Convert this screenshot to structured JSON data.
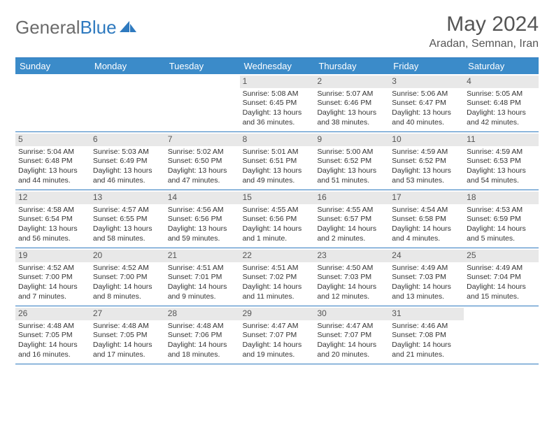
{
  "logo": {
    "text1": "General",
    "text2": "Blue"
  },
  "title": "May 2024",
  "location": "Aradan, Semnan, Iran",
  "colors": {
    "header_bg": "#3b8bc9",
    "border": "#2f7abf",
    "daynum_bg": "#e8e8e8",
    "page_bg": "#ffffff",
    "text": "#333333"
  },
  "dayNames": [
    "Sunday",
    "Monday",
    "Tuesday",
    "Wednesday",
    "Thursday",
    "Friday",
    "Saturday"
  ],
  "weeks": [
    [
      {
        "n": "",
        "l1": "",
        "l2": "",
        "l3": "",
        "l4": ""
      },
      {
        "n": "",
        "l1": "",
        "l2": "",
        "l3": "",
        "l4": ""
      },
      {
        "n": "",
        "l1": "",
        "l2": "",
        "l3": "",
        "l4": ""
      },
      {
        "n": "1",
        "l1": "Sunrise: 5:08 AM",
        "l2": "Sunset: 6:45 PM",
        "l3": "Daylight: 13 hours",
        "l4": "and 36 minutes."
      },
      {
        "n": "2",
        "l1": "Sunrise: 5:07 AM",
        "l2": "Sunset: 6:46 PM",
        "l3": "Daylight: 13 hours",
        "l4": "and 38 minutes."
      },
      {
        "n": "3",
        "l1": "Sunrise: 5:06 AM",
        "l2": "Sunset: 6:47 PM",
        "l3": "Daylight: 13 hours",
        "l4": "and 40 minutes."
      },
      {
        "n": "4",
        "l1": "Sunrise: 5:05 AM",
        "l2": "Sunset: 6:48 PM",
        "l3": "Daylight: 13 hours",
        "l4": "and 42 minutes."
      }
    ],
    [
      {
        "n": "5",
        "l1": "Sunrise: 5:04 AM",
        "l2": "Sunset: 6:48 PM",
        "l3": "Daylight: 13 hours",
        "l4": "and 44 minutes."
      },
      {
        "n": "6",
        "l1": "Sunrise: 5:03 AM",
        "l2": "Sunset: 6:49 PM",
        "l3": "Daylight: 13 hours",
        "l4": "and 46 minutes."
      },
      {
        "n": "7",
        "l1": "Sunrise: 5:02 AM",
        "l2": "Sunset: 6:50 PM",
        "l3": "Daylight: 13 hours",
        "l4": "and 47 minutes."
      },
      {
        "n": "8",
        "l1": "Sunrise: 5:01 AM",
        "l2": "Sunset: 6:51 PM",
        "l3": "Daylight: 13 hours",
        "l4": "and 49 minutes."
      },
      {
        "n": "9",
        "l1": "Sunrise: 5:00 AM",
        "l2": "Sunset: 6:52 PM",
        "l3": "Daylight: 13 hours",
        "l4": "and 51 minutes."
      },
      {
        "n": "10",
        "l1": "Sunrise: 4:59 AM",
        "l2": "Sunset: 6:52 PM",
        "l3": "Daylight: 13 hours",
        "l4": "and 53 minutes."
      },
      {
        "n": "11",
        "l1": "Sunrise: 4:59 AM",
        "l2": "Sunset: 6:53 PM",
        "l3": "Daylight: 13 hours",
        "l4": "and 54 minutes."
      }
    ],
    [
      {
        "n": "12",
        "l1": "Sunrise: 4:58 AM",
        "l2": "Sunset: 6:54 PM",
        "l3": "Daylight: 13 hours",
        "l4": "and 56 minutes."
      },
      {
        "n": "13",
        "l1": "Sunrise: 4:57 AM",
        "l2": "Sunset: 6:55 PM",
        "l3": "Daylight: 13 hours",
        "l4": "and 58 minutes."
      },
      {
        "n": "14",
        "l1": "Sunrise: 4:56 AM",
        "l2": "Sunset: 6:56 PM",
        "l3": "Daylight: 13 hours",
        "l4": "and 59 minutes."
      },
      {
        "n": "15",
        "l1": "Sunrise: 4:55 AM",
        "l2": "Sunset: 6:56 PM",
        "l3": "Daylight: 14 hours",
        "l4": "and 1 minute."
      },
      {
        "n": "16",
        "l1": "Sunrise: 4:55 AM",
        "l2": "Sunset: 6:57 PM",
        "l3": "Daylight: 14 hours",
        "l4": "and 2 minutes."
      },
      {
        "n": "17",
        "l1": "Sunrise: 4:54 AM",
        "l2": "Sunset: 6:58 PM",
        "l3": "Daylight: 14 hours",
        "l4": "and 4 minutes."
      },
      {
        "n": "18",
        "l1": "Sunrise: 4:53 AM",
        "l2": "Sunset: 6:59 PM",
        "l3": "Daylight: 14 hours",
        "l4": "and 5 minutes."
      }
    ],
    [
      {
        "n": "19",
        "l1": "Sunrise: 4:52 AM",
        "l2": "Sunset: 7:00 PM",
        "l3": "Daylight: 14 hours",
        "l4": "and 7 minutes."
      },
      {
        "n": "20",
        "l1": "Sunrise: 4:52 AM",
        "l2": "Sunset: 7:00 PM",
        "l3": "Daylight: 14 hours",
        "l4": "and 8 minutes."
      },
      {
        "n": "21",
        "l1": "Sunrise: 4:51 AM",
        "l2": "Sunset: 7:01 PM",
        "l3": "Daylight: 14 hours",
        "l4": "and 9 minutes."
      },
      {
        "n": "22",
        "l1": "Sunrise: 4:51 AM",
        "l2": "Sunset: 7:02 PM",
        "l3": "Daylight: 14 hours",
        "l4": "and 11 minutes."
      },
      {
        "n": "23",
        "l1": "Sunrise: 4:50 AM",
        "l2": "Sunset: 7:03 PM",
        "l3": "Daylight: 14 hours",
        "l4": "and 12 minutes."
      },
      {
        "n": "24",
        "l1": "Sunrise: 4:49 AM",
        "l2": "Sunset: 7:03 PM",
        "l3": "Daylight: 14 hours",
        "l4": "and 13 minutes."
      },
      {
        "n": "25",
        "l1": "Sunrise: 4:49 AM",
        "l2": "Sunset: 7:04 PM",
        "l3": "Daylight: 14 hours",
        "l4": "and 15 minutes."
      }
    ],
    [
      {
        "n": "26",
        "l1": "Sunrise: 4:48 AM",
        "l2": "Sunset: 7:05 PM",
        "l3": "Daylight: 14 hours",
        "l4": "and 16 minutes."
      },
      {
        "n": "27",
        "l1": "Sunrise: 4:48 AM",
        "l2": "Sunset: 7:05 PM",
        "l3": "Daylight: 14 hours",
        "l4": "and 17 minutes."
      },
      {
        "n": "28",
        "l1": "Sunrise: 4:48 AM",
        "l2": "Sunset: 7:06 PM",
        "l3": "Daylight: 14 hours",
        "l4": "and 18 minutes."
      },
      {
        "n": "29",
        "l1": "Sunrise: 4:47 AM",
        "l2": "Sunset: 7:07 PM",
        "l3": "Daylight: 14 hours",
        "l4": "and 19 minutes."
      },
      {
        "n": "30",
        "l1": "Sunrise: 4:47 AM",
        "l2": "Sunset: 7:07 PM",
        "l3": "Daylight: 14 hours",
        "l4": "and 20 minutes."
      },
      {
        "n": "31",
        "l1": "Sunrise: 4:46 AM",
        "l2": "Sunset: 7:08 PM",
        "l3": "Daylight: 14 hours",
        "l4": "and 21 minutes."
      },
      {
        "n": "",
        "l1": "",
        "l2": "",
        "l3": "",
        "l4": ""
      }
    ]
  ]
}
